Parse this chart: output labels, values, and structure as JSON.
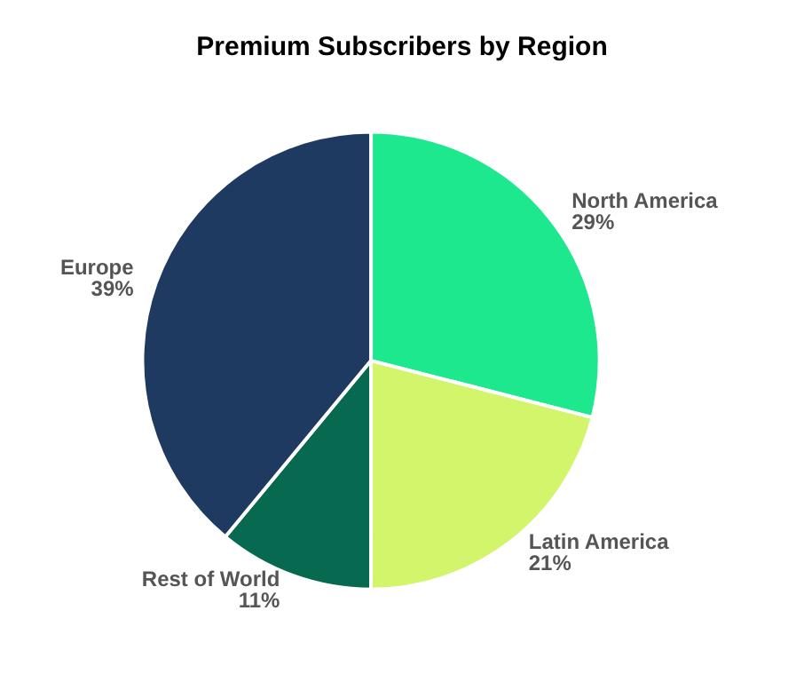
{
  "chart_data": {
    "type": "pie",
    "title": "Premium Subscribers by Region",
    "categories": [
      "North America",
      "Latin America",
      "Rest of World",
      "Europe"
    ],
    "values": [
      29,
      21,
      11,
      39
    ],
    "value_labels": [
      "29%",
      "21%",
      "11%",
      "39%"
    ],
    "colors": [
      "#1ee88e",
      "#d3f56b",
      "#07694f",
      "#1f3a60"
    ],
    "legend": false
  }
}
